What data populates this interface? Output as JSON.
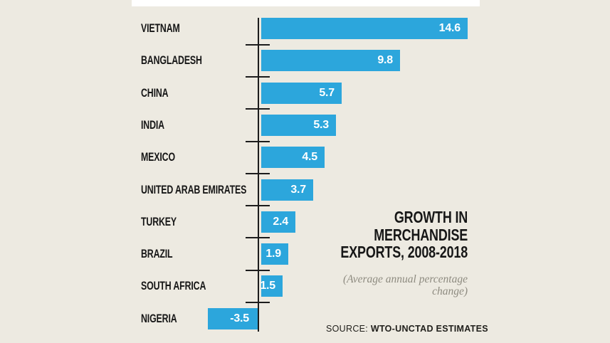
{
  "header": {
    "title_lines": [
      "GROWTH IN",
      "MERCHANDISE",
      "EXPORTS, 2008-2018"
    ],
    "subtitle": "(Average annual percentage change)"
  },
  "footer": {
    "source_prefix": "SOURCE:",
    "source_text": "WTO-UNCTAD ESTIMATES"
  },
  "colors": {
    "background": "#EDEAE1",
    "bar": "#2CA6DC",
    "axis": "#1C1C1C",
    "label_text": "#171717",
    "value_text": "#FFFFFF",
    "subtitle_text": "#8E8B80",
    "top_strip": "#FFFFFF"
  },
  "chart_data": {
    "type": "bar",
    "orientation": "horizontal",
    "categories": [
      "VIETNAM",
      "BANGLADESH",
      "CHINA",
      "INDIA",
      "MEXICO",
      "UNITED ARAB EMIRATES",
      "TURKEY",
      "BRAZIL",
      "SOUTH AFRICA",
      "NIGERIA"
    ],
    "values": [
      14.6,
      9.8,
      5.7,
      5.3,
      4.5,
      3.7,
      2.4,
      1.9,
      1.5,
      -3.5
    ],
    "value_labels": [
      "14.6",
      "9.8",
      "5.7",
      "5.3",
      "4.5",
      "3.7",
      "2.4",
      "1.9",
      "1.5",
      "-3.5"
    ],
    "title": "GROWTH IN MERCHANDISE EXPORTS, 2008-2018",
    "subtitle": "(Average annual percentage change)",
    "source": "SOURCE: WTO-UNCTAD ESTIMATES",
    "xlim": [
      -3.5,
      14.6
    ],
    "grid": false,
    "legend": false,
    "bar_color": "#2CA6DC",
    "value_label_position": "inside-end"
  }
}
